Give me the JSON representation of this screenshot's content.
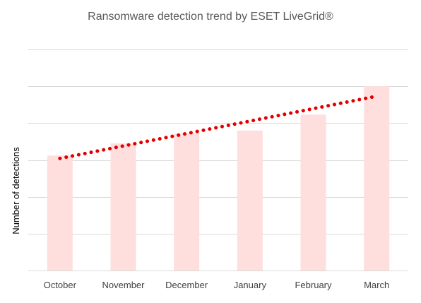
{
  "chart_data": {
    "type": "bar",
    "title": "Ransomware detection trend by ESET LiveGrid®",
    "xlabel": "",
    "ylabel": "Number of detections",
    "categories": [
      "October",
      "November",
      "December",
      "January",
      "February",
      "March"
    ],
    "values": [
      3.12,
      3.45,
      3.72,
      3.8,
      4.23,
      5.0
    ],
    "ylim": [
      0,
      6
    ],
    "grid": true,
    "legend": "none",
    "trendline": {
      "type": "linear",
      "style": "dotted"
    },
    "colors": {
      "bar": "#ffdede",
      "trendline": "#e00000",
      "gridline": "#d9d9d9"
    }
  }
}
